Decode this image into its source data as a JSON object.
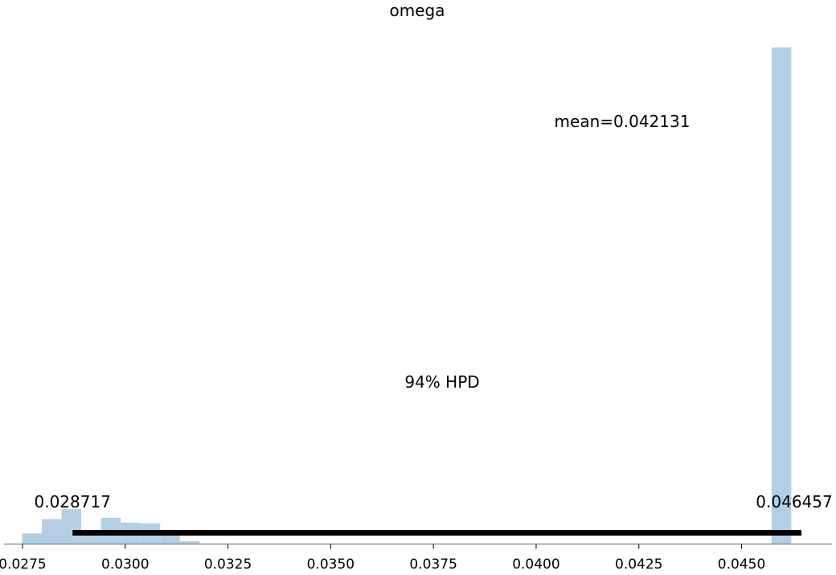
{
  "chart_data": {
    "type": "bar",
    "title": "omega",
    "xlabel": "",
    "ylabel": "",
    "xlim": [
      0.02705,
      0.0472
    ],
    "ylim": [
      0,
      1
    ],
    "bin_width": 0.00048,
    "bins": [
      {
        "x0": 0.02749,
        "height": 0.0215
      },
      {
        "x0": 0.02797,
        "height": 0.0502
      },
      {
        "x0": 0.02845,
        "height": 0.0702
      },
      {
        "x0": 0.02893,
        "height": 0.0287
      },
      {
        "x0": 0.02941,
        "height": 0.053
      },
      {
        "x0": 0.02989,
        "height": 0.043
      },
      {
        "x0": 0.03037,
        "height": 0.0416
      },
      {
        "x0": 0.03085,
        "height": 0.0172
      },
      {
        "x0": 0.03133,
        "height": 0.0057
      },
      {
        "x0": 0.04573,
        "height": 1.0
      }
    ],
    "bar_color": "#b3cfe4",
    "xticks": [
      0.0275,
      0.03,
      0.0325,
      0.035,
      0.0375,
      0.04,
      0.0425,
      0.045
    ],
    "xtick_labels": [
      "0.0275",
      "0.0300",
      "0.0325",
      "0.0350",
      "0.0375",
      "0.0400",
      "0.0425",
      "0.0450"
    ],
    "mean_label": "mean=0.042131",
    "hpd": {
      "label": "94% HPD",
      "low": 0.028717,
      "high": 0.046457,
      "low_label": "0.028717",
      "high_label": "0.046457"
    },
    "grid": false,
    "legend": "none"
  }
}
